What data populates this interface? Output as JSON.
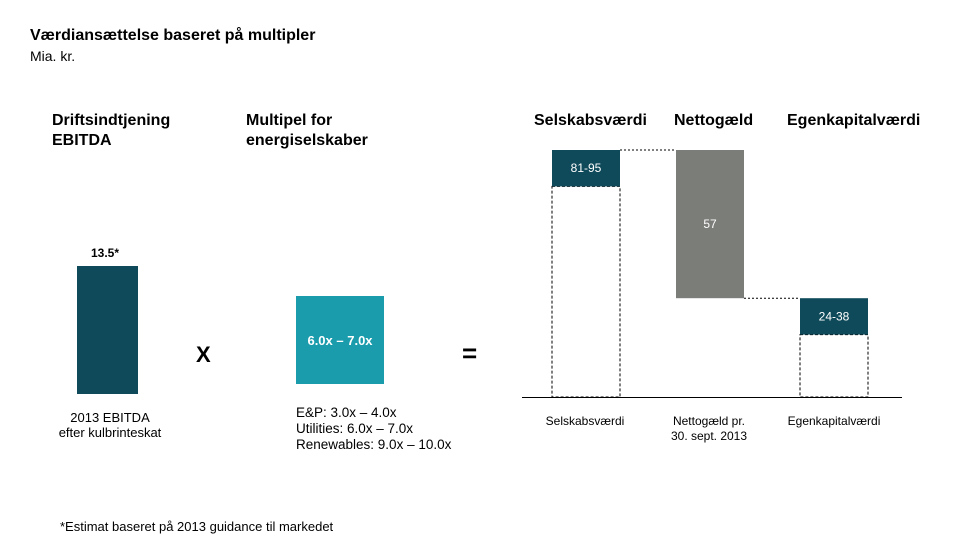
{
  "title": "Værdiansættelse baseret på multipler",
  "subtitle": "Mia. kr.",
  "ebitda": {
    "heading_line1": "Driftsindtjening",
    "heading_line2": "EBITDA",
    "value_label": "13.5*",
    "caption_line1": "2013 EBITDA",
    "caption_line2": "efter kulbrinteskat",
    "color": "#0f4a5a"
  },
  "operator_times": "X",
  "operator_equals": "=",
  "multiple": {
    "heading_line1": "Multipel for",
    "heading_line2": "energiselskaber",
    "box_label": "6.0x – 7.0x",
    "ranges": [
      "E&P: 3.0x – 4.0x",
      "Utilities: 6.0x – 7.0x",
      "Renewables:  9.0x – 10.0x"
    ],
    "color": "#1a9cad"
  },
  "footnote": "*Estimat baseret på 2013 guidance til markedet",
  "chart_data": {
    "type": "waterfall",
    "columns": [
      {
        "heading": "Selskabsværdi",
        "category": "Selskabsværdi",
        "range": [
          81,
          95
        ],
        "label": "81-95",
        "color": "#0f4a5a"
      },
      {
        "heading": "Nettogæld",
        "category_line1": "Nettogæld pr.",
        "category_line2": "30. sept. 2013",
        "value": 57,
        "label": "57",
        "color": "#7b7d79"
      },
      {
        "heading": "Egenkapitalværdi",
        "category": "Egenkapitalværdi",
        "range": [
          24,
          38
        ],
        "label": "24-38",
        "color": "#0f4a5a"
      }
    ],
    "ylim": [
      0,
      95
    ]
  }
}
